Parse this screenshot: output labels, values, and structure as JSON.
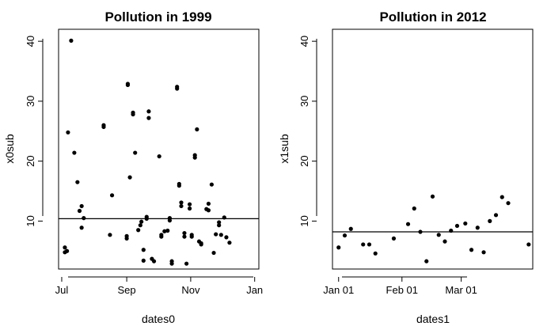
{
  "chart_data": [
    {
      "type": "scatter",
      "title": "Pollution in 1999",
      "xlabel": "dates0",
      "ylabel": "x0sub",
      "xlim": [
        "1999-06-28",
        "2000-01-05"
      ],
      "ylim": [
        2,
        42
      ],
      "x_ticks": [
        {
          "value": "1999-07-01",
          "label": "Jul"
        },
        {
          "value": "1999-09-01",
          "label": "Sep"
        },
        {
          "value": "1999-11-01",
          "label": "Nov"
        },
        {
          "value": "2000-01-01",
          "label": "Jan"
        }
      ],
      "y_ticks": [
        10,
        20,
        30,
        40
      ],
      "hline": 10.4,
      "grid": false,
      "points": [
        {
          "x": "1999-07-04",
          "y": 5.6
        },
        {
          "x": "1999-07-04",
          "y": 4.8
        },
        {
          "x": "1999-07-06",
          "y": 5.0
        },
        {
          "x": "1999-07-07",
          "y": 24.8
        },
        {
          "x": "1999-07-10",
          "y": 40.1
        },
        {
          "x": "1999-07-13",
          "y": 21.4
        },
        {
          "x": "1999-07-16",
          "y": 16.5
        },
        {
          "x": "1999-07-18",
          "y": 11.7
        },
        {
          "x": "1999-07-20",
          "y": 12.5
        },
        {
          "x": "1999-07-20",
          "y": 8.9
        },
        {
          "x": "1999-07-22",
          "y": 10.5
        },
        {
          "x": "1999-08-10",
          "y": 26.0
        },
        {
          "x": "1999-08-10",
          "y": 25.7
        },
        {
          "x": "1999-08-16",
          "y": 7.7
        },
        {
          "x": "1999-08-18",
          "y": 14.3
        },
        {
          "x": "1999-09-01",
          "y": 7.5
        },
        {
          "x": "1999-09-01",
          "y": 7.1
        },
        {
          "x": "1999-09-02",
          "y": 32.9
        },
        {
          "x": "1999-09-02",
          "y": 32.7
        },
        {
          "x": "1999-09-04",
          "y": 17.3
        },
        {
          "x": "1999-09-07",
          "y": 28.1
        },
        {
          "x": "1999-09-07",
          "y": 27.8
        },
        {
          "x": "1999-09-09",
          "y": 21.4
        },
        {
          "x": "1999-09-12",
          "y": 8.5
        },
        {
          "x": "1999-09-14",
          "y": 9.3
        },
        {
          "x": "1999-09-15",
          "y": 9.9
        },
        {
          "x": "1999-09-17",
          "y": 3.4
        },
        {
          "x": "1999-09-17",
          "y": 5.2
        },
        {
          "x": "1999-09-20",
          "y": 10.4
        },
        {
          "x": "1999-09-20",
          "y": 10.7
        },
        {
          "x": "1999-09-22",
          "y": 28.3
        },
        {
          "x": "1999-09-22",
          "y": 27.2
        },
        {
          "x": "1999-09-25",
          "y": 3.7
        },
        {
          "x": "1999-09-27",
          "y": 3.3
        },
        {
          "x": "1999-10-02",
          "y": 20.8
        },
        {
          "x": "1999-10-04",
          "y": 7.4
        },
        {
          "x": "1999-10-04",
          "y": 7.7
        },
        {
          "x": "1999-10-07",
          "y": 8.3
        },
        {
          "x": "1999-10-10",
          "y": 8.4
        },
        {
          "x": "1999-10-12",
          "y": 10.1
        },
        {
          "x": "1999-10-12",
          "y": 10.5
        },
        {
          "x": "1999-10-14",
          "y": 3.3
        },
        {
          "x": "1999-10-14",
          "y": 2.9
        },
        {
          "x": "1999-10-19",
          "y": 32.4
        },
        {
          "x": "1999-10-19",
          "y": 32.1
        },
        {
          "x": "1999-10-21",
          "y": 16.2
        },
        {
          "x": "1999-10-21",
          "y": 15.9
        },
        {
          "x": "1999-10-23",
          "y": 12.5
        },
        {
          "x": "1999-10-23",
          "y": 13.1
        },
        {
          "x": "1999-10-26",
          "y": 8.0
        },
        {
          "x": "1999-10-26",
          "y": 7.4
        },
        {
          "x": "1999-10-28",
          "y": 2.9
        },
        {
          "x": "1999-10-31",
          "y": 12.8
        },
        {
          "x": "1999-10-31",
          "y": 12.1
        },
        {
          "x": "1999-11-02",
          "y": 7.4
        },
        {
          "x": "1999-11-02",
          "y": 7.7
        },
        {
          "x": "1999-11-05",
          "y": 21.0
        },
        {
          "x": "1999-11-05",
          "y": 20.6
        },
        {
          "x": "1999-11-07",
          "y": 25.3
        },
        {
          "x": "1999-11-09",
          "y": 6.6
        },
        {
          "x": "1999-11-11",
          "y": 6.1
        },
        {
          "x": "1999-11-11",
          "y": 6.3
        },
        {
          "x": "1999-11-16",
          "y": 12.0
        },
        {
          "x": "1999-11-18",
          "y": 12.9
        },
        {
          "x": "1999-11-18",
          "y": 11.8
        },
        {
          "x": "1999-11-21",
          "y": 16.1
        },
        {
          "x": "1999-11-23",
          "y": 4.7
        },
        {
          "x": "1999-11-25",
          "y": 7.8
        },
        {
          "x": "1999-11-28",
          "y": 9.3
        },
        {
          "x": "1999-11-28",
          "y": 9.8
        },
        {
          "x": "1999-11-30",
          "y": 7.7
        },
        {
          "x": "1999-12-03",
          "y": 10.6
        },
        {
          "x": "1999-12-05",
          "y": 7.3
        },
        {
          "x": "1999-12-08",
          "y": 6.4
        }
      ]
    },
    {
      "type": "scatter",
      "title": "Pollution in 2012",
      "xlabel": "dates1",
      "ylabel": "x1sub",
      "xlim": [
        "2011-12-29",
        "2012-04-05"
      ],
      "ylim": [
        2,
        42
      ],
      "x_ticks": [
        {
          "value": "2012-01-01",
          "label": "Jan 01"
        },
        {
          "value": "2012-02-01",
          "label": "Feb 01"
        },
        {
          "value": "2012-03-01",
          "label": "Mar 01"
        }
      ],
      "y_ticks": [
        10,
        20,
        30,
        40
      ],
      "hline": 8.2,
      "grid": false,
      "points": [
        {
          "x": "2012-01-01",
          "y": 5.6
        },
        {
          "x": "2012-01-04",
          "y": 7.6
        },
        {
          "x": "2012-01-07",
          "y": 8.7
        },
        {
          "x": "2012-01-13",
          "y": 6.1
        },
        {
          "x": "2012-01-16",
          "y": 6.1
        },
        {
          "x": "2012-01-19",
          "y": 4.6
        },
        {
          "x": "2012-01-28",
          "y": 7.1
        },
        {
          "x": "2012-02-04",
          "y": 9.5
        },
        {
          "x": "2012-02-07",
          "y": 12.1
        },
        {
          "x": "2012-02-10",
          "y": 8.2
        },
        {
          "x": "2012-02-13",
          "y": 3.3
        },
        {
          "x": "2012-02-16",
          "y": 14.1
        },
        {
          "x": "2012-02-19",
          "y": 7.7
        },
        {
          "x": "2012-02-22",
          "y": 6.6
        },
        {
          "x": "2012-02-25",
          "y": 8.4
        },
        {
          "x": "2012-02-28",
          "y": 9.2
        },
        {
          "x": "2012-03-03",
          "y": 9.6
        },
        {
          "x": "2012-03-06",
          "y": 5.2
        },
        {
          "x": "2012-03-09",
          "y": 8.9
        },
        {
          "x": "2012-03-12",
          "y": 4.8
        },
        {
          "x": "2012-03-15",
          "y": 10.0
        },
        {
          "x": "2012-03-18",
          "y": 11.0
        },
        {
          "x": "2012-03-21",
          "y": 14.0
        },
        {
          "x": "2012-03-24",
          "y": 13.0
        },
        {
          "x": "2012-04-03",
          "y": 6.1
        }
      ]
    }
  ]
}
